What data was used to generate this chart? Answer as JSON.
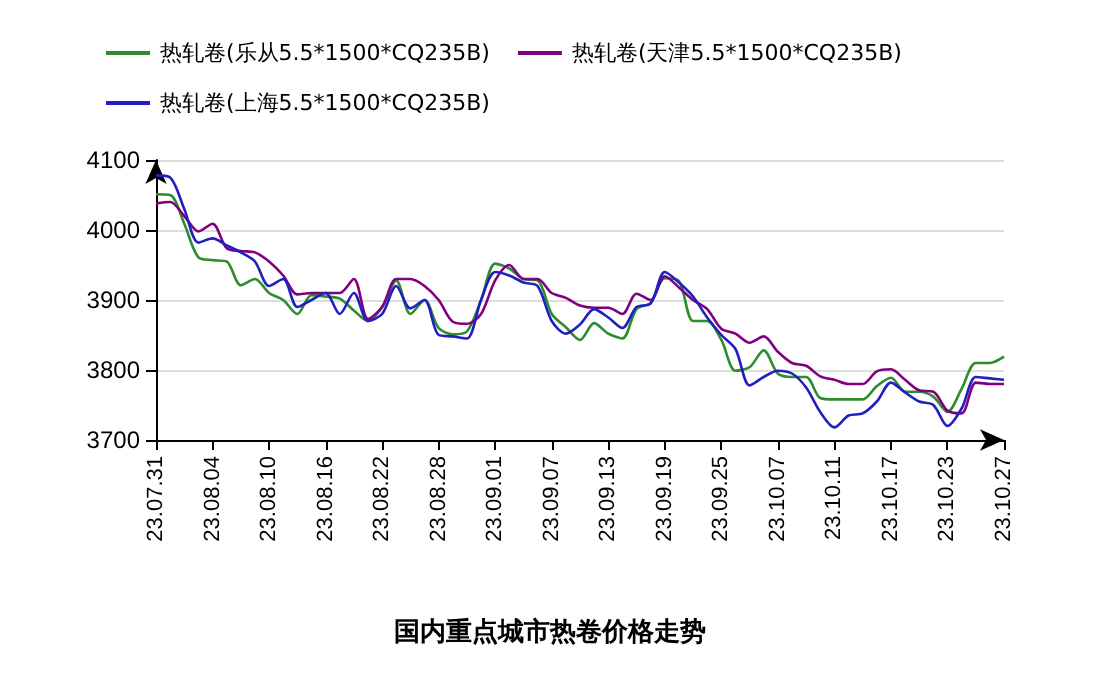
{
  "chart_data": {
    "type": "line",
    "title": "国内重点城市热卷价格走势",
    "categories": [
      "23.07.31",
      null,
      null,
      null,
      "23.08.04",
      null,
      null,
      null,
      "23.08.10",
      null,
      null,
      null,
      "23.08.16",
      null,
      null,
      null,
      "23.08.22",
      null,
      null,
      null,
      "23.08.28",
      null,
      null,
      null,
      "23.09.01",
      null,
      null,
      null,
      "23.09.07",
      null,
      null,
      null,
      "23.09.13",
      null,
      null,
      null,
      "23.09.19",
      null,
      null,
      null,
      "23.09.25",
      null,
      null,
      null,
      "23.10.07",
      null,
      null,
      null,
      "23.10.11",
      null,
      null,
      null,
      "23.10.17",
      null,
      null,
      null,
      "23.10.23",
      null,
      null,
      null,
      "23.10.27"
    ],
    "series": [
      {
        "name": "热轧卷(乐从5.5*1500*CQ235B)",
        "color": "#2e8b2e",
        "values": [
          4051,
          4050,
          4009,
          3961,
          3957,
          3955,
          3921,
          3930,
          3910,
          3900,
          3880,
          3907,
          3905,
          3902,
          3885,
          3870,
          3890,
          3928,
          3880,
          3900,
          3860,
          3851,
          3855,
          3900,
          3952,
          3945,
          3930,
          3928,
          3880,
          3861,
          3843,
          3867,
          3852,
          3845,
          3887,
          3896,
          3931,
          3927,
          3870,
          3870,
          3843,
          3799,
          3804,
          3828,
          3795,
          3790,
          3790,
          3760,
          3758,
          3758,
          3758,
          3777,
          3789,
          3769,
          3769,
          3762,
          3740,
          3773,
          3810,
          3810,
          3819
        ]
      },
      {
        "name": "热轧卷(天津5.5*1500*CQ235B)",
        "color": "#800080",
        "values": [
          4038,
          4040,
          4020,
          3998,
          4009,
          3974,
          3970,
          3968,
          3955,
          3935,
          3908,
          3910,
          3910,
          3910,
          3930,
          3873,
          3890,
          3930,
          3930,
          3920,
          3900,
          3869,
          3866,
          3880,
          3928,
          3950,
          3930,
          3930,
          3910,
          3903,
          3892,
          3889,
          3889,
          3880,
          3909,
          3900,
          3934,
          3918,
          3900,
          3887,
          3859,
          3852,
          3839,
          3848,
          3826,
          3810,
          3806,
          3791,
          3786,
          3780,
          3780,
          3798,
          3801,
          3786,
          3771,
          3769,
          3742,
          3738,
          3782,
          3780,
          3780
        ]
      },
      {
        "name": "热轧卷(上海5.5*1500*CQ235B)",
        "color": "#2020c0",
        "values": [
          4078,
          4075,
          4030,
          3982,
          3988,
          3978,
          3968,
          3955,
          3920,
          3930,
          3890,
          3900,
          3910,
          3880,
          3910,
          3870,
          3880,
          3920,
          3888,
          3900,
          3850,
          3848,
          3845,
          3900,
          3940,
          3935,
          3925,
          3920,
          3870,
          3852,
          3865,
          3887,
          3875,
          3860,
          3890,
          3895,
          3940,
          3925,
          3905,
          3875,
          3850,
          3830,
          3778,
          3790,
          3799,
          3795,
          3775,
          3740,
          3718,
          3735,
          3738,
          3755,
          3782,
          3768,
          3755,
          3750,
          3720,
          3745,
          3790,
          3788,
          3786
        ]
      }
    ],
    "ylim": [
      3700,
      4100
    ],
    "yticks": [
      3700,
      3800,
      3900,
      4000,
      4100
    ],
    "grid": "y",
    "legend": "top",
    "marker": "none",
    "line_style": "solid"
  }
}
